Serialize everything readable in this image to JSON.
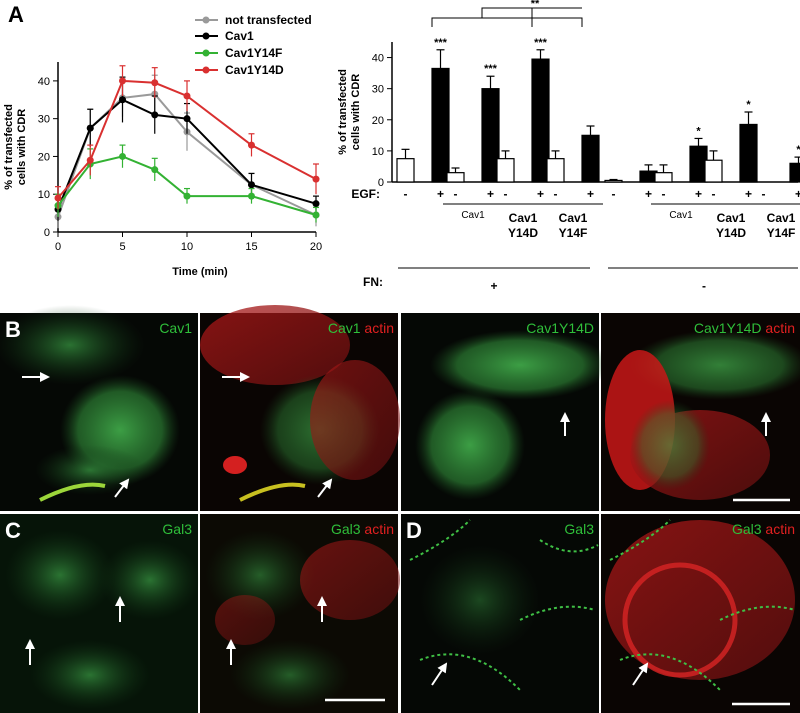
{
  "panel_letters": {
    "a": "A",
    "b": "B",
    "c": "C",
    "d": "D"
  },
  "colors": {
    "not_transfected": "#9a9a9a",
    "cav1": "#000000",
    "cav1y14f": "#33b233",
    "cav1y14d": "#d93030",
    "green_channel": "#2fbf3a",
    "red_channel": "#e02020"
  },
  "chart_data": [
    {
      "type": "line",
      "xlabel": "Time (min)",
      "ylabel_line1": "% of transfected",
      "ylabel_line2": "cells with CDR",
      "xlim": [
        0,
        20
      ],
      "ylim": [
        0,
        45
      ],
      "x_ticks": [
        "0",
        "5",
        "10",
        "15",
        "20"
      ],
      "y_ticks": [
        "0",
        "10",
        "20",
        "30",
        "40"
      ],
      "x": [
        0,
        2.5,
        5,
        7.5,
        10,
        15,
        20
      ],
      "series": [
        {
          "name": "not transfected",
          "color": "#9a9a9a",
          "values": [
            4,
            27.5,
            35.5,
            36.5,
            26.5,
            12.5,
            4.5
          ],
          "errors": [
            3,
            5,
            5,
            5,
            5,
            3,
            3
          ]
        },
        {
          "name": "Cav1",
          "color": "#000000",
          "values": [
            6,
            27.5,
            35,
            31,
            30,
            12.5,
            7.5
          ],
          "errors": [
            3,
            5,
            6,
            5,
            4,
            3,
            2
          ]
        },
        {
          "name": "Cav1Y14F",
          "color": "#33b233",
          "values": [
            7,
            18,
            20,
            16.5,
            9.5,
            9.5,
            4.5
          ],
          "errors": [
            3,
            4,
            3,
            3,
            2,
            2,
            2
          ]
        },
        {
          "name": "Cav1Y14D",
          "color": "#d93030",
          "values": [
            9,
            19,
            40,
            39.5,
            36,
            23,
            14
          ],
          "errors": [
            3,
            4,
            4,
            4,
            4,
            3,
            4
          ]
        }
      ]
    },
    {
      "type": "bar",
      "ylabel_line1": "% of transfected",
      "ylabel_line2": "cells with CDR",
      "ylim": [
        0,
        45
      ],
      "y_ticks": [
        "0",
        "10",
        "20",
        "30",
        "40"
      ],
      "egf_row_label": "EGF:",
      "fn_row_label": "FN:",
      "egf_marks": [
        "-",
        "+",
        "-",
        "+",
        "-",
        "+",
        "-",
        "+",
        "-",
        "+",
        "-",
        "+",
        "-",
        "+",
        "-",
        "+"
      ],
      "fn_groups": [
        "+",
        "-"
      ],
      "groups": [
        {
          "label_line1": "",
          "label_line2": "",
          "fn": "+",
          "values": [
            7.5,
            36.5
          ],
          "errors": [
            3,
            6
          ],
          "sig": [
            "",
            "***"
          ]
        },
        {
          "label_line1": "Cav1",
          "label_line2": "",
          "fn": "+",
          "values": [
            3,
            30
          ],
          "errors": [
            1.5,
            4
          ],
          "sig": [
            "",
            "***"
          ]
        },
        {
          "label_line1": "Cav1",
          "label_line2": "Y14D",
          "fn": "+",
          "values": [
            7.5,
            39.5
          ],
          "errors": [
            2.5,
            3
          ],
          "sig": [
            "",
            "***"
          ]
        },
        {
          "label_line1": "Cav1",
          "label_line2": "Y14F",
          "fn": "+",
          "values": [
            7.5,
            15
          ],
          "errors": [
            2.5,
            3
          ],
          "sig": [
            "",
            ""
          ]
        },
        {
          "label_line1": "",
          "label_line2": "",
          "fn": "-",
          "values": [
            0.5,
            3.5
          ],
          "errors": [
            0.3,
            2
          ],
          "sig": [
            "",
            ""
          ]
        },
        {
          "label_line1": "Cav1",
          "label_line2": "",
          "fn": "-",
          "values": [
            3,
            11.5
          ],
          "errors": [
            2.5,
            2.5
          ],
          "sig": [
            "",
            "*"
          ]
        },
        {
          "label_line1": "Cav1",
          "label_line2": "Y14D",
          "fn": "-",
          "values": [
            7,
            18.5
          ],
          "errors": [
            3,
            4
          ],
          "sig": [
            "",
            "*"
          ]
        },
        {
          "label_line1": "Cav1",
          "label_line2": "Y14F",
          "fn": "-",
          "values": [
            0,
            6
          ],
          "errors": [
            0,
            2
          ],
          "sig": [
            "",
            "*"
          ]
        }
      ],
      "bracket_label": "**"
    }
  ],
  "micrographs": {
    "b1": {
      "parts": [
        {
          "text": "Cav1",
          "color": "#2fbf3a"
        }
      ]
    },
    "b2": {
      "parts": [
        {
          "text": "Cav1",
          "color": "#2fbf3a"
        },
        {
          "text": " actin",
          "color": "#e02020"
        }
      ]
    },
    "b3": {
      "parts": [
        {
          "text": "Cav1Y14D",
          "color": "#2fbf3a"
        }
      ]
    },
    "b4": {
      "parts": [
        {
          "text": "Cav1Y14D",
          "color": "#2fbf3a"
        },
        {
          "text": " actin",
          "color": "#e02020"
        }
      ]
    },
    "c1": {
      "parts": [
        {
          "text": "Gal3",
          "color": "#2fbf3a"
        }
      ]
    },
    "c2": {
      "parts": [
        {
          "text": "Gal3",
          "color": "#2fbf3a"
        },
        {
          "text": " actin",
          "color": "#e02020"
        }
      ]
    },
    "d1": {
      "parts": [
        {
          "text": "Gal3",
          "color": "#2fbf3a"
        }
      ]
    },
    "d2": {
      "parts": [
        {
          "text": "Gal3",
          "color": "#2fbf3a"
        },
        {
          "text": " actin",
          "color": "#e02020"
        }
      ]
    }
  }
}
